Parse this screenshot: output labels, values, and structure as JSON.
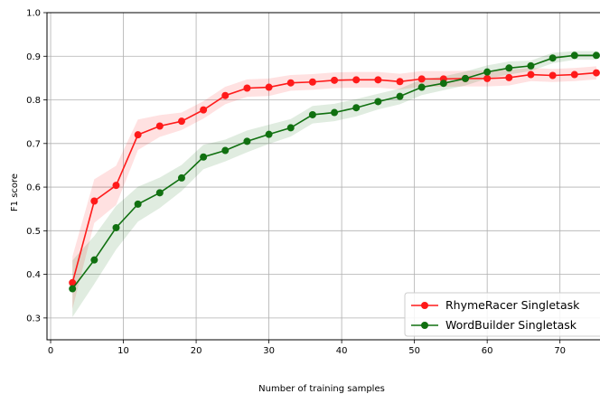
{
  "chart_data": {
    "type": "line",
    "title": "",
    "xlabel": "Number of training samples",
    "ylabel": "F1 score",
    "xlim": [
      -0.5,
      76
    ],
    "ylim": [
      0.25,
      1.0
    ],
    "xticks": [
      0,
      10,
      20,
      30,
      40,
      50,
      60,
      70
    ],
    "yticks": [
      0.3,
      0.4,
      0.5,
      0.6,
      0.7,
      0.8,
      0.9,
      1.0
    ],
    "ytick_labels": [
      "0.3",
      "0.4",
      "0.5",
      "0.6",
      "0.7",
      "0.8",
      "0.9",
      "1.0"
    ],
    "grid": true,
    "legend_position": "lower-right",
    "x": [
      3,
      6,
      9,
      12,
      15,
      18,
      21,
      24,
      27,
      30,
      33,
      36,
      39,
      42,
      45,
      48,
      51,
      54,
      57,
      60,
      63,
      66,
      69,
      72,
      75
    ],
    "series": [
      {
        "name": "RhymeRacer Singletask",
        "color": "#ff1a1a",
        "values": [
          0.381,
          0.568,
          0.604,
          0.72,
          0.74,
          0.751,
          0.777,
          0.81,
          0.827,
          0.829,
          0.839,
          0.841,
          0.845,
          0.846,
          0.846,
          0.842,
          0.848,
          0.848,
          0.849,
          0.849,
          0.851,
          0.858,
          0.856,
          0.858,
          0.862
        ],
        "band": [
          0.06,
          0.05,
          0.045,
          0.035,
          0.025,
          0.02,
          0.02,
          0.02,
          0.02,
          0.02,
          0.018,
          0.018,
          0.018,
          0.018,
          0.018,
          0.018,
          0.018,
          0.018,
          0.018,
          0.018,
          0.018,
          0.015,
          0.015,
          0.015,
          0.015
        ]
      },
      {
        "name": "WordBuilder Singletask",
        "color": "#107010",
        "values": [
          0.367,
          0.433,
          0.507,
          0.561,
          0.587,
          0.621,
          0.669,
          0.684,
          0.705,
          0.721,
          0.736,
          0.766,
          0.771,
          0.782,
          0.796,
          0.808,
          0.829,
          0.838,
          0.849,
          0.864,
          0.873,
          0.878,
          0.896,
          0.902,
          0.902
        ],
        "band": [
          0.065,
          0.055,
          0.05,
          0.04,
          0.035,
          0.03,
          0.028,
          0.025,
          0.025,
          0.022,
          0.02,
          0.02,
          0.02,
          0.02,
          0.018,
          0.018,
          0.018,
          0.016,
          0.016,
          0.015,
          0.015,
          0.012,
          0.012,
          0.01,
          0.01
        ]
      }
    ]
  }
}
